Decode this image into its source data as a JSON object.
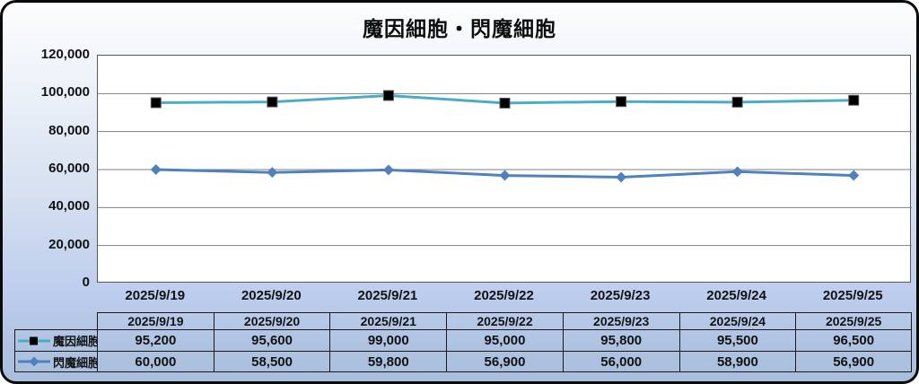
{
  "title": "魔因細胞・閃魔細胞",
  "chart_data": {
    "type": "line",
    "title": "魔因細胞・閃魔細胞",
    "categories": [
      "2025/9/19",
      "2025/9/20",
      "2025/9/21",
      "2025/9/22",
      "2025/9/23",
      "2025/9/24",
      "2025/9/25"
    ],
    "series": [
      {
        "name": "魔因細胞",
        "values": [
          95200,
          95600,
          99000,
          95000,
          95800,
          95500,
          96500
        ],
        "color": "#4BACC6",
        "marker": "square",
        "marker_color": "#000000"
      },
      {
        "name": "閃魔細胞",
        "values": [
          60000,
          58500,
          59800,
          56900,
          56000,
          58900,
          56900
        ],
        "color": "#4F81BD",
        "marker": "diamond",
        "marker_color": "#4F81BD"
      }
    ],
    "ylim": [
      0,
      120000
    ],
    "ytick_step": 20000,
    "ytick_labels": [
      "0",
      "20,000",
      "40,000",
      "60,000",
      "80,000",
      "100,000",
      "120,000"
    ],
    "grid": "horizontal",
    "gridline_color": "#7f7f7f",
    "plot_border_color": "#595959",
    "legend_position": "table-left-column"
  },
  "table": {
    "header": [
      "",
      "2025/9/19",
      "2025/9/20",
      "2025/9/21",
      "2025/9/22",
      "2025/9/23",
      "2025/9/24",
      "2025/9/25"
    ],
    "rows": [
      {
        "label": "魔因細胞",
        "values": [
          "95,200",
          "95,600",
          "99,000",
          "95,000",
          "95,800",
          "95,500",
          "96,500"
        ]
      },
      {
        "label": "閃魔細胞",
        "values": [
          "60,000",
          "58,500",
          "59,800",
          "56,900",
          "56,000",
          "58,900",
          "56,900"
        ]
      }
    ]
  }
}
